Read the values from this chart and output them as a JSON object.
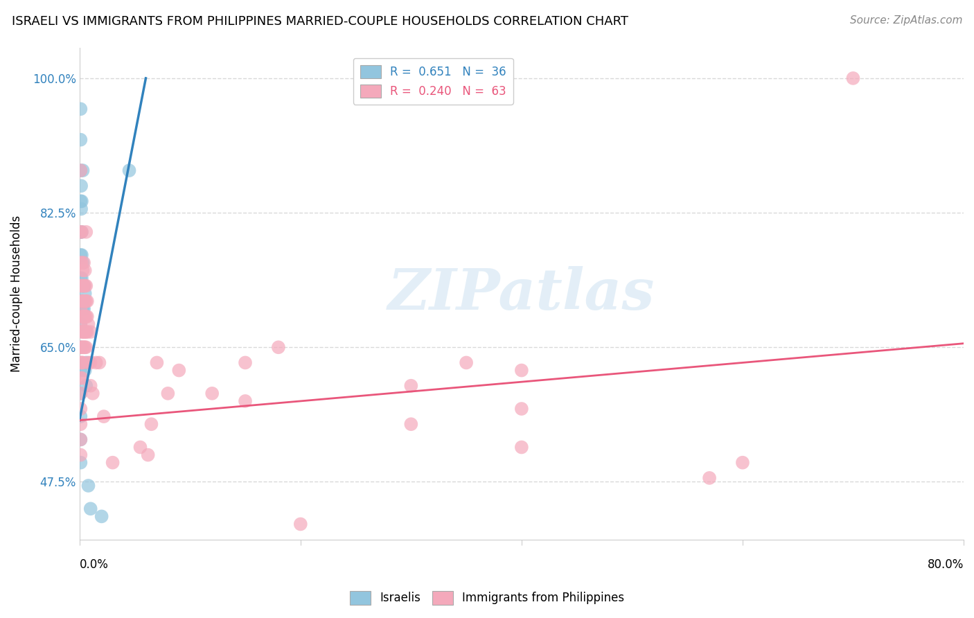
{
  "title": "ISRAELI VS IMMIGRANTS FROM PHILIPPINES MARRIED-COUPLE HOUSEHOLDS CORRELATION CHART",
  "source": "Source: ZipAtlas.com",
  "ylabel": "Married-couple Households",
  "xmin": 0.0,
  "xmax": 0.8,
  "ymin": 0.4,
  "ymax": 1.04,
  "ytick_positions": [
    0.475,
    0.65,
    0.825,
    1.0
  ],
  "ytick_labels": [
    "47.5%",
    "65.0%",
    "82.5%",
    "100.0%"
  ],
  "blue_color": "#92c5de",
  "pink_color": "#f4a9bb",
  "blue_line_color": "#3182bd",
  "pink_line_color": "#e9567b",
  "watermark": "ZIPatlas",
  "background_color": "#ffffff",
  "grid_color": "#d9d9d9",
  "blue_line": [
    [
      0.0,
      0.555
    ],
    [
      0.06,
      1.0
    ]
  ],
  "pink_line": [
    [
      0.0,
      0.555
    ],
    [
      0.8,
      0.655
    ]
  ],
  "israeli_points": [
    [
      0.001,
      0.96
    ],
    [
      0.001,
      0.92
    ],
    [
      0.001,
      0.88
    ],
    [
      0.001,
      0.84
    ],
    [
      0.001,
      0.8
    ],
    [
      0.001,
      0.77
    ],
    [
      0.001,
      0.74
    ],
    [
      0.001,
      0.71
    ],
    [
      0.001,
      0.68
    ],
    [
      0.001,
      0.65
    ],
    [
      0.001,
      0.62
    ],
    [
      0.001,
      0.59
    ],
    [
      0.001,
      0.56
    ],
    [
      0.001,
      0.53
    ],
    [
      0.001,
      0.5
    ],
    [
      0.0015,
      0.86
    ],
    [
      0.0015,
      0.83
    ],
    [
      0.002,
      0.84
    ],
    [
      0.002,
      0.8
    ],
    [
      0.002,
      0.77
    ],
    [
      0.002,
      0.74
    ],
    [
      0.002,
      0.71
    ],
    [
      0.003,
      0.88
    ],
    [
      0.003,
      0.76
    ],
    [
      0.003,
      0.73
    ],
    [
      0.003,
      0.7
    ],
    [
      0.004,
      0.73
    ],
    [
      0.004,
      0.7
    ],
    [
      0.005,
      0.72
    ],
    [
      0.005,
      0.62
    ],
    [
      0.006,
      0.63
    ],
    [
      0.006,
      0.6
    ],
    [
      0.008,
      0.47
    ],
    [
      0.01,
      0.44
    ],
    [
      0.02,
      0.43
    ],
    [
      0.045,
      0.88
    ]
  ],
  "phil_points": [
    [
      0.001,
      0.88
    ],
    [
      0.001,
      0.8
    ],
    [
      0.001,
      0.76
    ],
    [
      0.001,
      0.73
    ],
    [
      0.001,
      0.7
    ],
    [
      0.001,
      0.68
    ],
    [
      0.001,
      0.65
    ],
    [
      0.001,
      0.63
    ],
    [
      0.001,
      0.61
    ],
    [
      0.001,
      0.59
    ],
    [
      0.001,
      0.57
    ],
    [
      0.001,
      0.55
    ],
    [
      0.001,
      0.53
    ],
    [
      0.001,
      0.51
    ],
    [
      0.002,
      0.8
    ],
    [
      0.002,
      0.76
    ],
    [
      0.002,
      0.73
    ],
    [
      0.002,
      0.71
    ],
    [
      0.002,
      0.69
    ],
    [
      0.002,
      0.67
    ],
    [
      0.002,
      0.65
    ],
    [
      0.002,
      0.63
    ],
    [
      0.002,
      0.61
    ],
    [
      0.003,
      0.75
    ],
    [
      0.003,
      0.73
    ],
    [
      0.003,
      0.71
    ],
    [
      0.003,
      0.69
    ],
    [
      0.003,
      0.67
    ],
    [
      0.003,
      0.65
    ],
    [
      0.003,
      0.63
    ],
    [
      0.004,
      0.76
    ],
    [
      0.004,
      0.73
    ],
    [
      0.004,
      0.71
    ],
    [
      0.004,
      0.69
    ],
    [
      0.004,
      0.67
    ],
    [
      0.004,
      0.65
    ],
    [
      0.005,
      0.75
    ],
    [
      0.005,
      0.73
    ],
    [
      0.005,
      0.71
    ],
    [
      0.005,
      0.69
    ],
    [
      0.005,
      0.67
    ],
    [
      0.005,
      0.65
    ],
    [
      0.006,
      0.8
    ],
    [
      0.006,
      0.73
    ],
    [
      0.006,
      0.71
    ],
    [
      0.006,
      0.69
    ],
    [
      0.006,
      0.67
    ],
    [
      0.006,
      0.65
    ],
    [
      0.007,
      0.71
    ],
    [
      0.007,
      0.69
    ],
    [
      0.007,
      0.67
    ],
    [
      0.008,
      0.68
    ],
    [
      0.008,
      0.63
    ],
    [
      0.01,
      0.67
    ],
    [
      0.01,
      0.63
    ],
    [
      0.01,
      0.6
    ],
    [
      0.012,
      0.59
    ],
    [
      0.015,
      0.63
    ],
    [
      0.018,
      0.63
    ],
    [
      0.022,
      0.56
    ],
    [
      0.03,
      0.5
    ],
    [
      0.062,
      0.51
    ],
    [
      0.7,
      1.0
    ],
    [
      0.6,
      0.5
    ],
    [
      0.57,
      0.48
    ],
    [
      0.4,
      0.62
    ],
    [
      0.4,
      0.57
    ],
    [
      0.4,
      0.52
    ],
    [
      0.35,
      0.63
    ],
    [
      0.3,
      0.6
    ],
    [
      0.3,
      0.55
    ],
    [
      0.2,
      0.42
    ],
    [
      0.18,
      0.65
    ],
    [
      0.15,
      0.63
    ],
    [
      0.15,
      0.58
    ],
    [
      0.12,
      0.59
    ],
    [
      0.09,
      0.62
    ],
    [
      0.08,
      0.59
    ],
    [
      0.07,
      0.63
    ],
    [
      0.065,
      0.55
    ],
    [
      0.055,
      0.52
    ]
  ]
}
